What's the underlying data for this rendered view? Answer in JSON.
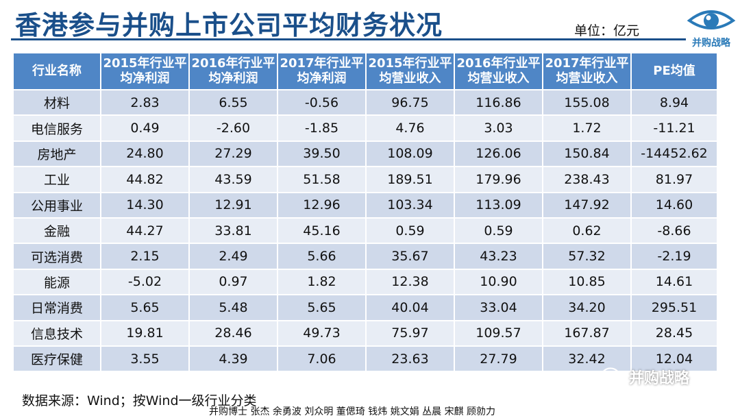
{
  "title": "香港参与并购上市公司平均财务状况",
  "unit": "单位：亿元",
  "logo_text": "并购战略",
  "table": {
    "headers": [
      "行业名称",
      "2015年行业平均净利润",
      "2016年行业平均净利润",
      "2017年行业平均净利润",
      "2015年行业平均营业收入",
      "2016年行业平均营业收入",
      "2017年行业平均营业收入",
      "PE均值"
    ],
    "rows": [
      [
        "材料",
        "2.83",
        "6.55",
        "-0.56",
        "96.75",
        "116.86",
        "155.08",
        "8.94"
      ],
      [
        "电信服务",
        "0.49",
        "-2.60",
        "-1.85",
        "4.76",
        "3.03",
        "1.72",
        "-11.21"
      ],
      [
        "房地产",
        "24.80",
        "27.29",
        "39.50",
        "108.09",
        "126.06",
        "150.84",
        "-14452.62"
      ],
      [
        "工业",
        "44.82",
        "43.59",
        "51.58",
        "189.51",
        "179.96",
        "238.43",
        "81.97"
      ],
      [
        "公用事业",
        "14.30",
        "12.91",
        "12.96",
        "103.34",
        "113.09",
        "147.92",
        "14.60"
      ],
      [
        "金融",
        "44.27",
        "33.81",
        "45.16",
        "0.59",
        "0.59",
        "0.62",
        "-8.66"
      ],
      [
        "可选消费",
        "2.15",
        "2.49",
        "5.66",
        "35.67",
        "43.23",
        "57.32",
        "-2.19"
      ],
      [
        "能源",
        "-5.02",
        "0.97",
        "1.82",
        "12.38",
        "10.90",
        "10.85",
        "14.61"
      ],
      [
        "日常消费",
        "5.65",
        "5.48",
        "5.65",
        "40.04",
        "33.04",
        "34.20",
        "295.51"
      ],
      [
        "信息技术",
        "19.81",
        "28.46",
        "49.73",
        "75.97",
        "109.57",
        "167.87",
        "28.45"
      ],
      [
        "医疗保健",
        "3.55",
        "4.39",
        "7.06",
        "23.63",
        "27.79",
        "32.42",
        "12.04"
      ]
    ]
  },
  "source": "数据来源：Wind；按Wind一级行业分类",
  "authors": "并购博士 张杰 余勇波 刘众明 董偲琦 钱炜 姚文娟 丛晨 宋麒 顾勍力",
  "watermark": "并购战略",
  "colors": {
    "header_bg": "#4f86c6",
    "row_dark": "#cfd9ea",
    "row_light": "#e8edf5",
    "title": "#1a4f8a",
    "logo": "#2a7ab8"
  }
}
